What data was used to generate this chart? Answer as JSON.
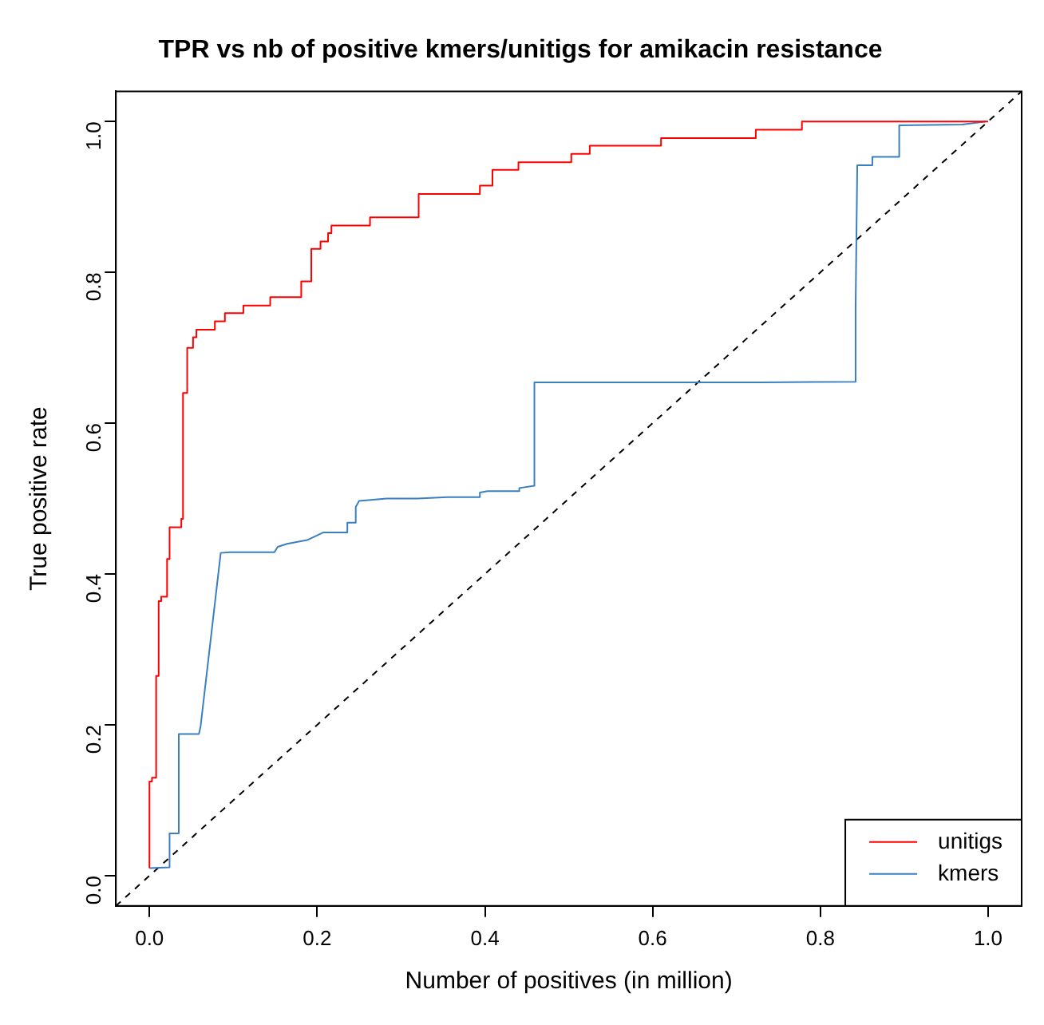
{
  "chart_data": {
    "type": "line",
    "title": "TPR vs nb of positive kmers/unitigs for amikacin resistance",
    "xlabel": "Number of positives (in million)",
    "ylabel": "True positive rate",
    "xlim": [
      -0.04,
      1.04
    ],
    "ylim": [
      -0.04,
      1.04
    ],
    "xticks": [
      {
        "value": 0,
        "label": "0.0"
      },
      0.2,
      0.4,
      0.6,
      0.8,
      {
        "value": 1,
        "label": "1.0"
      }
    ],
    "yticks": [
      {
        "value": 0,
        "label": "0.0"
      },
      0.2,
      0.4,
      0.6,
      0.8,
      {
        "value": 1,
        "label": "1.0"
      }
    ],
    "grid": false,
    "legend": "bottom right",
    "marker": "none",
    "series": [
      {
        "name": "unitigs",
        "type": "step",
        "color": "#ff0000",
        "line_style": "solid",
        "x": [
          0,
          0.003,
          0.008,
          0.011,
          0.014,
          0.021,
          0.024,
          0.025,
          0.038,
          0.04,
          0.04,
          0.045,
          0.045,
          0.052,
          0.056,
          0.078,
          0.09,
          0.112,
          0.144,
          0.181,
          0.193,
          0.204,
          0.213,
          0.217,
          0.263,
          0.321,
          0.394,
          0.409,
          0.44,
          0.503,
          0.525,
          0.61,
          0.723,
          0.778,
          0.822,
          1.0
        ],
        "values": [
          0.01,
          0.125,
          0.13,
          0.265,
          0.364,
          0.37,
          0.42,
          0.462,
          0.462,
          0.473,
          0.63,
          0.64,
          0.68,
          0.7,
          0.714,
          0.724,
          0.735,
          0.746,
          0.756,
          0.767,
          0.788,
          0.831,
          0.841,
          0.852,
          0.862,
          0.873,
          0.904,
          0.915,
          0.936,
          0.946,
          0.957,
          0.968,
          0.978,
          0.989,
          1.0,
          1.0
        ]
      },
      {
        "name": "kmers",
        "color": "#3a7fc0",
        "line_style": "solid",
        "x": [
          0,
          0.024,
          0.024,
          0.035,
          0.035,
          0.059,
          0.061,
          0.085,
          0.096,
          0.149,
          0.153,
          0.164,
          0.188,
          0.207,
          0.236,
          0.236,
          0.246,
          0.246,
          0.25,
          0.283,
          0.32,
          0.355,
          0.394,
          0.394,
          0.403,
          0.441,
          0.441,
          0.459,
          0.459,
          0.728,
          0.842,
          0.842,
          0.844,
          0.862,
          0.862,
          0.894,
          0.894,
          0.969,
          0.997
        ],
        "values": [
          0.01,
          0.011,
          0.056,
          0.056,
          0.188,
          0.188,
          0.198,
          0.428,
          0.429,
          0.429,
          0.436,
          0.44,
          0.445,
          0.455,
          0.455,
          0.468,
          0.468,
          0.489,
          0.497,
          0.5,
          0.5,
          0.502,
          0.502,
          0.508,
          0.51,
          0.51,
          0.514,
          0.517,
          0.654,
          0.654,
          0.655,
          0.753,
          0.942,
          0.942,
          0.953,
          0.953,
          0.995,
          0.996,
          1.0
        ]
      },
      {
        "color": "#000000",
        "line_style": "dashed",
        "x": [
          -0.04,
          1.04
        ],
        "values": [
          -0.04,
          1.04
        ]
      }
    ]
  }
}
